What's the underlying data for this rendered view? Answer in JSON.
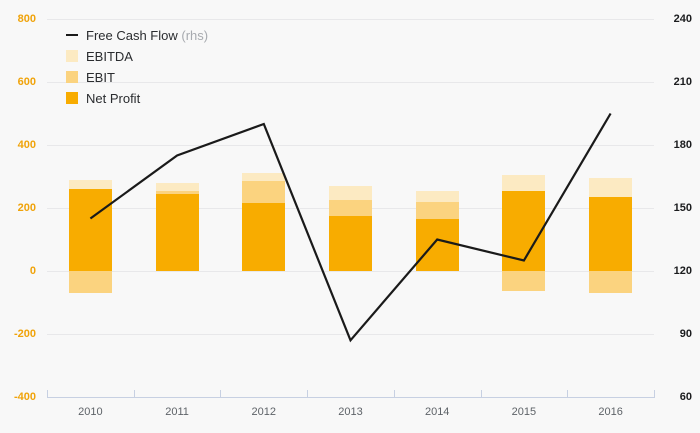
{
  "chart_data": {
    "type": "combo-bar-line",
    "title": "",
    "categories": [
      "2010",
      "2011",
      "2012",
      "2013",
      "2014",
      "2015",
      "2016"
    ],
    "series": [
      {
        "name": "EBITDA",
        "type": "bar",
        "axis": "left",
        "color": "#fceac2",
        "values": [
          290,
          280,
          310,
          270,
          255,
          305,
          295
        ]
      },
      {
        "name": "EBIT",
        "type": "bar",
        "axis": "left",
        "color": "#fbd37f",
        "values": [
          -70,
          255,
          285,
          225,
          220,
          -65,
          -70
        ]
      },
      {
        "name": "Net Profit",
        "type": "bar",
        "axis": "left",
        "color": "#f8ac00",
        "values": [
          260,
          245,
          215,
          175,
          165,
          255,
          235
        ]
      },
      {
        "name": "Free Cash Flow",
        "type": "line",
        "axis": "right",
        "color": "#1a1a1a",
        "values": [
          145,
          175,
          190,
          87,
          135,
          125,
          195
        ]
      }
    ],
    "left_axis": {
      "ticks": [
        800,
        600,
        400,
        200,
        0,
        -200,
        -400
      ],
      "min": -400,
      "max": 800,
      "label_color": "#f0a30a"
    },
    "right_axis": {
      "ticks": [
        240,
        210,
        180,
        150,
        120,
        90,
        60
      ],
      "min": 60,
      "max": 240,
      "label_color": "#1b1c1e"
    },
    "grid": true,
    "legend_position": "top-left",
    "legend": [
      {
        "label": "Free Cash Flow",
        "suffix": " (rhs)",
        "series": "Free Cash Flow",
        "swatch": "line"
      },
      {
        "label": "EBITDA",
        "suffix": "",
        "series": "EBITDA",
        "swatch": "box"
      },
      {
        "label": "EBIT",
        "suffix": "",
        "series": "EBIT",
        "swatch": "box"
      },
      {
        "label": "Net Profit",
        "suffix": "",
        "series": "Net Profit",
        "swatch": "box"
      }
    ],
    "palette": {
      "background": "#f8f8f8",
      "gridline": "#e8e8ea",
      "axis_line": "#c7d0e2",
      "line_series": "#1a1a1a",
      "x_label_color": "#5e6368"
    }
  }
}
